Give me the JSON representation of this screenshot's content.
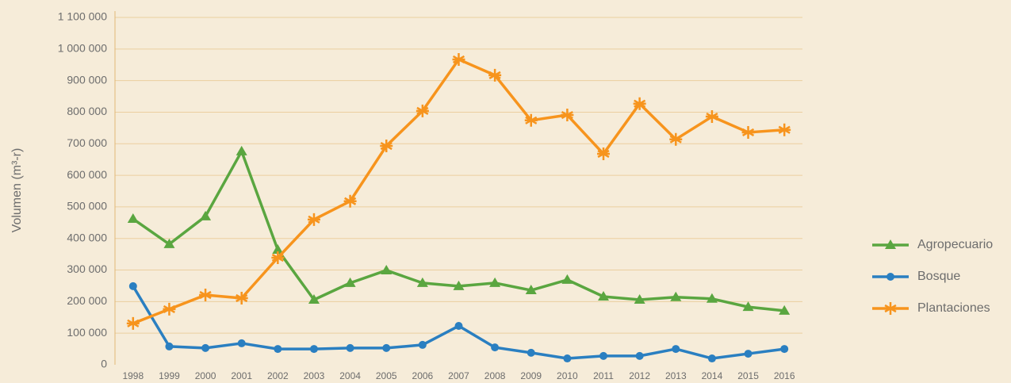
{
  "chart_data": {
    "type": "line",
    "y_label": "Volumen (m³-r)",
    "categories": [
      "1998",
      "1999",
      "2000",
      "2001",
      "2002",
      "2003",
      "2004",
      "2005",
      "2006",
      "2007",
      "2008",
      "2009",
      "2010",
      "2011",
      "2012",
      "2013",
      "2014",
      "2015",
      "2016"
    ],
    "series": [
      {
        "name": "Agropecuario",
        "color": "#5aa640",
        "marker": "triangle",
        "values": [
          462000,
          382000,
          470000,
          676000,
          364000,
          206000,
          259000,
          299000,
          259000,
          249000,
          259000,
          236000,
          269000,
          216000,
          206000,
          214000,
          209000,
          183000,
          171000
        ]
      },
      {
        "name": "Bosque",
        "color": "#2a7fc1",
        "marker": "circle",
        "values": [
          249000,
          58000,
          53000,
          68000,
          50000,
          50000,
          53000,
          53000,
          63000,
          123000,
          55000,
          38000,
          20000,
          28000,
          28000,
          50000,
          20000,
          35000,
          50000
        ]
      },
      {
        "name": "Plantaciones",
        "color": "#f7941d",
        "marker": "star",
        "values": [
          131000,
          176000,
          221000,
          211000,
          339000,
          460000,
          518000,
          693000,
          804000,
          967000,
          917000,
          774000,
          791000,
          668000,
          827000,
          714000,
          786000,
          736000,
          744000
        ]
      }
    ],
    "ylim": [
      0,
      1100000
    ],
    "yticks": [
      0,
      {
        "value": 100000,
        "label": "100 000"
      },
      {
        "value": 200000,
        "label": "200 000"
      },
      {
        "value": 300000,
        "label": "300 000"
      },
      {
        "value": 400000,
        "label": "400 000"
      },
      {
        "value": 500000,
        "label": "500 000"
      },
      {
        "value": 600000,
        "label": "600 000"
      },
      {
        "value": 700000,
        "label": "700 000"
      },
      {
        "value": 800000,
        "label": "800 000"
      },
      {
        "value": 900000,
        "label": "900 000"
      },
      {
        "value": 1000000,
        "label": "1 000 000"
      },
      {
        "value": 1100000,
        "label": "1 100 000"
      }
    ],
    "grid": true,
    "legend": "right"
  }
}
